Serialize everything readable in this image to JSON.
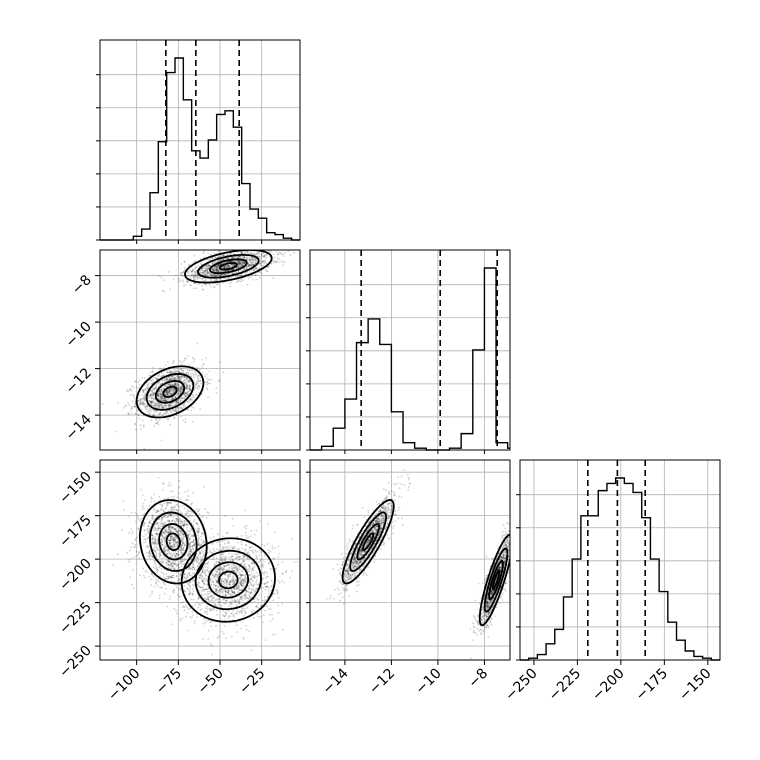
{
  "chart_data": {
    "type": "corner",
    "grid": true,
    "parameters": [
      {
        "ticks": [
          -100,
          -75,
          -50,
          -25
        ],
        "tick_labels": [
          "−100",
          "−75",
          "−50",
          "−25"
        ],
        "range": [
          -122,
          -2
        ],
        "quantiles": [
          -82.5,
          -64.5,
          -38.5
        ],
        "hist_edges": [
          -122,
          -117,
          -112,
          -107,
          -102,
          -97,
          -92,
          -87,
          -82,
          -77,
          -72,
          -67,
          -62,
          -57,
          -52,
          -47,
          -42,
          -37,
          -32,
          -27,
          -22,
          -17,
          -12,
          -7,
          -2
        ],
        "hist_counts": [
          0,
          0,
          0,
          0,
          2,
          6,
          26,
          54,
          92,
          100,
          77,
          49,
          45,
          55,
          69,
          71,
          62,
          31,
          17,
          12,
          4,
          3,
          1,
          0
        ]
      },
      {
        "ticks": [
          -14,
          -12,
          -10,
          -8
        ],
        "tick_labels": [
          "−14",
          "−12",
          "−10",
          "−8"
        ],
        "range": [
          -15.5,
          -6.9
        ],
        "quantiles": [
          -13.3,
          -9.9,
          -7.45
        ],
        "hist_edges": [
          -15.5,
          -15.0,
          -14.5,
          -14.0,
          -13.5,
          -13.0,
          -12.5,
          -12.0,
          -11.5,
          -11.0,
          -10.5,
          -10.0,
          -9.5,
          -9.0,
          -8.5,
          -8.0,
          -7.5,
          -7.0,
          -6.9
        ],
        "hist_counts": [
          0,
          2,
          12,
          28,
          59,
          72,
          58,
          21,
          4,
          1,
          0,
          0,
          1,
          9,
          55,
          100,
          4,
          1
        ]
      },
      {
        "ticks": [
          -150,
          -175,
          -200,
          -225,
          -250
        ],
        "tick_labels": [
          "−150",
          "−175",
          "−200",
          "−225",
          "−250"
        ],
        "range": [
          -258,
          -143
        ],
        "quantiles": [
          -219,
          -202,
          -186
        ],
        "hist_edges": [
          -258,
          -253,
          -248,
          -243,
          -238,
          -233,
          -228,
          -223,
          -218,
          -213,
          -208,
          -203,
          -198,
          -193,
          -188,
          -183,
          -178,
          -173,
          -168,
          -163,
          -158,
          -153,
          -148,
          -143
        ],
        "hist_counts": [
          0,
          1,
          3,
          9,
          17,
          35,
          56,
          80,
          80,
          94,
          98,
          101,
          98,
          93,
          79,
          56,
          38,
          21,
          11,
          5,
          2,
          1,
          0
        ]
      }
    ],
    "pairs": [
      {
        "xi": 0,
        "yi": 1,
        "modes": [
          {
            "x": -80,
            "y": -13.0,
            "sx": 10,
            "sy": 0.55,
            "rho": 0.35,
            "n": 1400
          },
          {
            "x": -45,
            "y": -7.6,
            "sx": 13,
            "sy": 0.35,
            "rho": 0.5,
            "n": 1400
          }
        ]
      },
      {
        "xi": 0,
        "yi": 2,
        "modes": [
          {
            "x": -78,
            "y": -190,
            "sx": 10,
            "sy": 12,
            "rho": -0.1,
            "n": 1400
          },
          {
            "x": -45,
            "y": -212,
            "sx": 14,
            "sy": 12,
            "rho": 0.05,
            "n": 1400
          }
        ]
      },
      {
        "xi": 1,
        "yi": 2,
        "modes": [
          {
            "x": -13.0,
            "y": -190,
            "sx": 0.55,
            "sy": 12,
            "rho": 0.85,
            "n": 1400
          },
          {
            "x": -7.5,
            "y": -212,
            "sx": 0.35,
            "sy": 13,
            "rho": 0.85,
            "n": 1400
          }
        ]
      }
    ]
  }
}
